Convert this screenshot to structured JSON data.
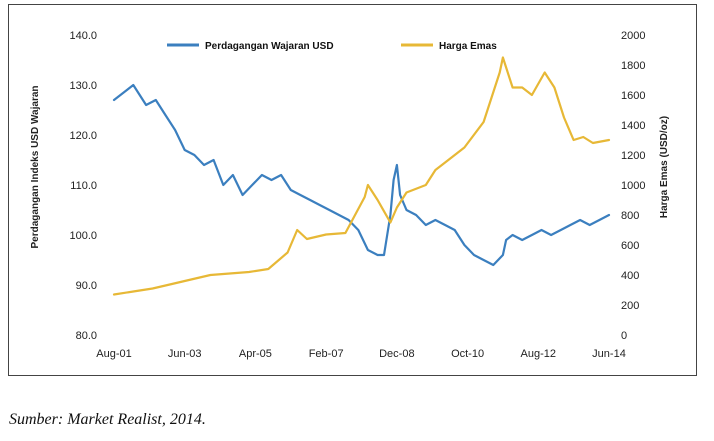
{
  "colors": {
    "usd_index": "#3b7fbf",
    "gold": "#e7b836",
    "gridline": "#d8d8d8"
  },
  "source_note": "Sumber: Market Realist, 2014.",
  "chart_data": {
    "type": "line",
    "xlabel": "",
    "ylabel": "Perdagangan Indeks USD Wajaran",
    "y2label": "Harga Emas (USD/oz)",
    "legend_position": "top-center",
    "grid": false,
    "x_tick_labels": [
      "Aug-01",
      "Jun-03",
      "Apr-05",
      "Feb-07",
      "Dec-08",
      "Oct-10",
      "Aug-12",
      "Jun-14"
    ],
    "y_left": {
      "ylim": [
        80,
        140
      ],
      "ticks": [
        "80.0",
        "90.0",
        "100.0",
        "110.0",
        "120.0",
        "130.0",
        "140.0"
      ]
    },
    "y_right": {
      "ylim": [
        0,
        2000
      ],
      "ticks": [
        "0",
        "200",
        "400",
        "600",
        "800",
        "1000",
        "1200",
        "1400",
        "1600",
        "1800",
        "2000"
      ]
    },
    "series": [
      {
        "name": "Perdagangan Wajaran USD",
        "axis": "left",
        "x": [
          "2001-08",
          "2001-12",
          "2002-02",
          "2002-04",
          "2002-06",
          "2002-09",
          "2002-12",
          "2003-03",
          "2003-06",
          "2003-09",
          "2003-12",
          "2004-03",
          "2004-06",
          "2004-09",
          "2004-12",
          "2005-03",
          "2005-06",
          "2005-09",
          "2005-12",
          "2006-03",
          "2006-06",
          "2006-09",
          "2006-12",
          "2007-03",
          "2007-06",
          "2007-09",
          "2007-12",
          "2008-03",
          "2008-06",
          "2008-08",
          "2008-10",
          "2008-11",
          "2008-12",
          "2009-01",
          "2009-03",
          "2009-06",
          "2009-09",
          "2009-12",
          "2010-03",
          "2010-06",
          "2010-09",
          "2010-12",
          "2011-03",
          "2011-06",
          "2011-09",
          "2011-10",
          "2011-12",
          "2012-03",
          "2012-06",
          "2012-09",
          "2012-12",
          "2013-03",
          "2013-06",
          "2013-09",
          "2013-12",
          "2014-03",
          "2014-06"
        ],
        "values": [
          127,
          129,
          130,
          128,
          126,
          127,
          124,
          121,
          117,
          116,
          114,
          115,
          110,
          112,
          108,
          110,
          112,
          111,
          112,
          109,
          108,
          107,
          106,
          105,
          104,
          103,
          101,
          97,
          96,
          96,
          104,
          111,
          114,
          108,
          105,
          104,
          102,
          103,
          102,
          101,
          98,
          96,
          95,
          94,
          96,
          99,
          100,
          99,
          100,
          101,
          100,
          101,
          102,
          103,
          102,
          103,
          104
        ]
      },
      {
        "name": "Harga Emas",
        "axis": "right",
        "x": [
          "2001-08",
          "2002-02",
          "2002-08",
          "2003-02",
          "2003-08",
          "2004-02",
          "2004-08",
          "2005-02",
          "2005-08",
          "2006-02",
          "2006-05",
          "2006-08",
          "2007-02",
          "2007-08",
          "2008-02",
          "2008-03",
          "2008-06",
          "2008-10",
          "2008-12",
          "2009-03",
          "2009-09",
          "2009-12",
          "2010-03",
          "2010-09",
          "2011-03",
          "2011-08",
          "2011-09",
          "2011-12",
          "2012-03",
          "2012-06",
          "2012-10",
          "2013-01",
          "2013-04",
          "2013-07",
          "2013-10",
          "2014-01",
          "2014-06"
        ],
        "values": [
          270,
          290,
          310,
          340,
          370,
          400,
          410,
          420,
          440,
          550,
          700,
          640,
          670,
          680,
          920,
          1000,
          900,
          750,
          850,
          950,
          1000,
          1100,
          1150,
          1250,
          1420,
          1750,
          1850,
          1650,
          1650,
          1600,
          1750,
          1650,
          1450,
          1300,
          1320,
          1280,
          1300
        ]
      }
    ]
  }
}
